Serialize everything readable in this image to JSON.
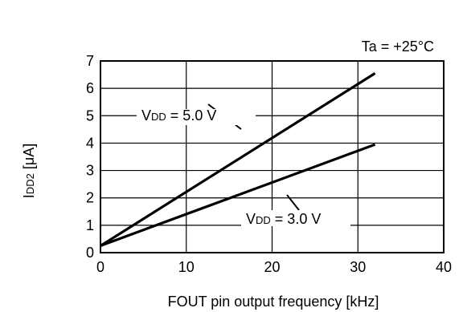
{
  "chart_data": {
    "type": "line",
    "condition": "Ta = +25°C",
    "xlabel": "FOUT pin output frequency [kHz]",
    "ylabel": {
      "main": "I",
      "sub": "DD2",
      "unit": " [μA]"
    },
    "xlim": [
      0,
      40
    ],
    "ylim": [
      0,
      7
    ],
    "x_ticks": [
      0,
      10,
      20,
      30,
      40
    ],
    "y_ticks": [
      0,
      1,
      2,
      3,
      4,
      5,
      6,
      7
    ],
    "grid": true,
    "series": [
      {
        "label_main": "V",
        "label_sub": "DD",
        "label_value": " = 5.0 V",
        "points": [
          [
            0,
            0.25
          ],
          [
            32,
            6.55
          ]
        ]
      },
      {
        "label_main": "V",
        "label_sub": "DD",
        "label_value": " = 3.0 V",
        "points": [
          [
            0,
            0.25
          ],
          [
            32,
            3.95
          ]
        ]
      }
    ],
    "line_color": "#000000"
  }
}
